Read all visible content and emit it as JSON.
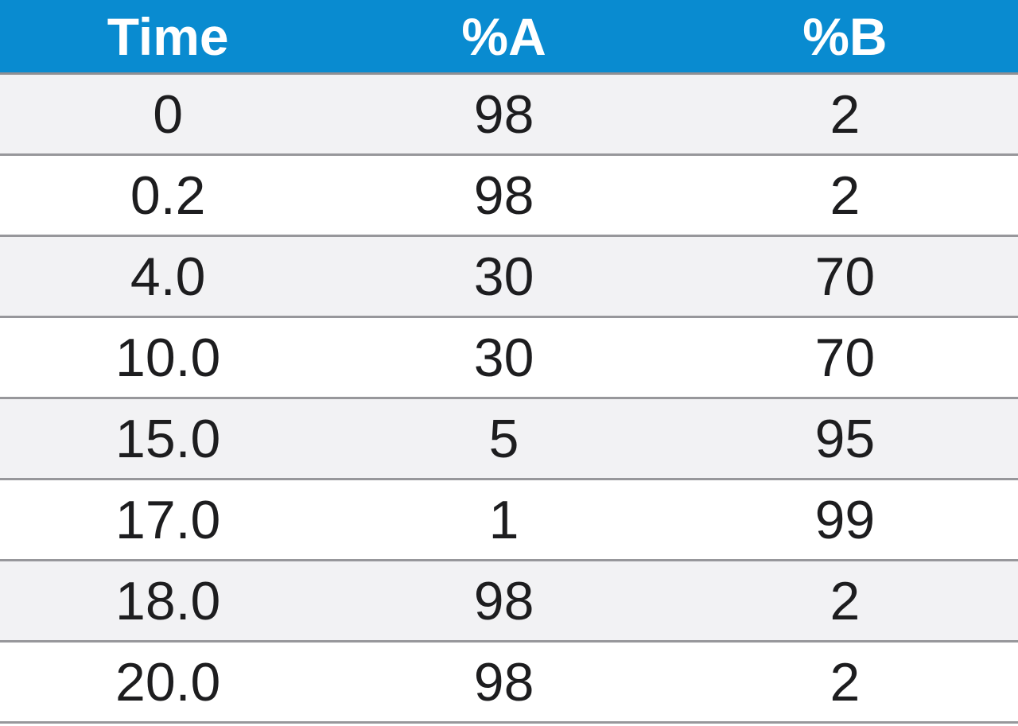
{
  "chart_data": {
    "type": "table",
    "title": "",
    "columns": [
      "Time",
      "%A",
      "%B"
    ],
    "rows": [
      [
        "0",
        "98",
        "2"
      ],
      [
        "0.2",
        "98",
        "2"
      ],
      [
        "4.0",
        "30",
        "70"
      ],
      [
        "10.0",
        "30",
        "70"
      ],
      [
        "15.0",
        "5",
        "95"
      ],
      [
        "17.0",
        "1",
        "99"
      ],
      [
        "18.0",
        "98",
        "2"
      ],
      [
        "20.0",
        "98",
        "2"
      ]
    ],
    "layout_hints": {
      "header_position": "top",
      "row_striping": "odd-rows-shaded",
      "cell_alignment": "center"
    }
  },
  "colors": {
    "header_background": "#098bd0",
    "header_text": "#ffffff",
    "row_shaded": "#f2f2f4",
    "row_plain": "#ffffff",
    "divider": "#97979b",
    "cell_text": "#1d1d1f"
  }
}
